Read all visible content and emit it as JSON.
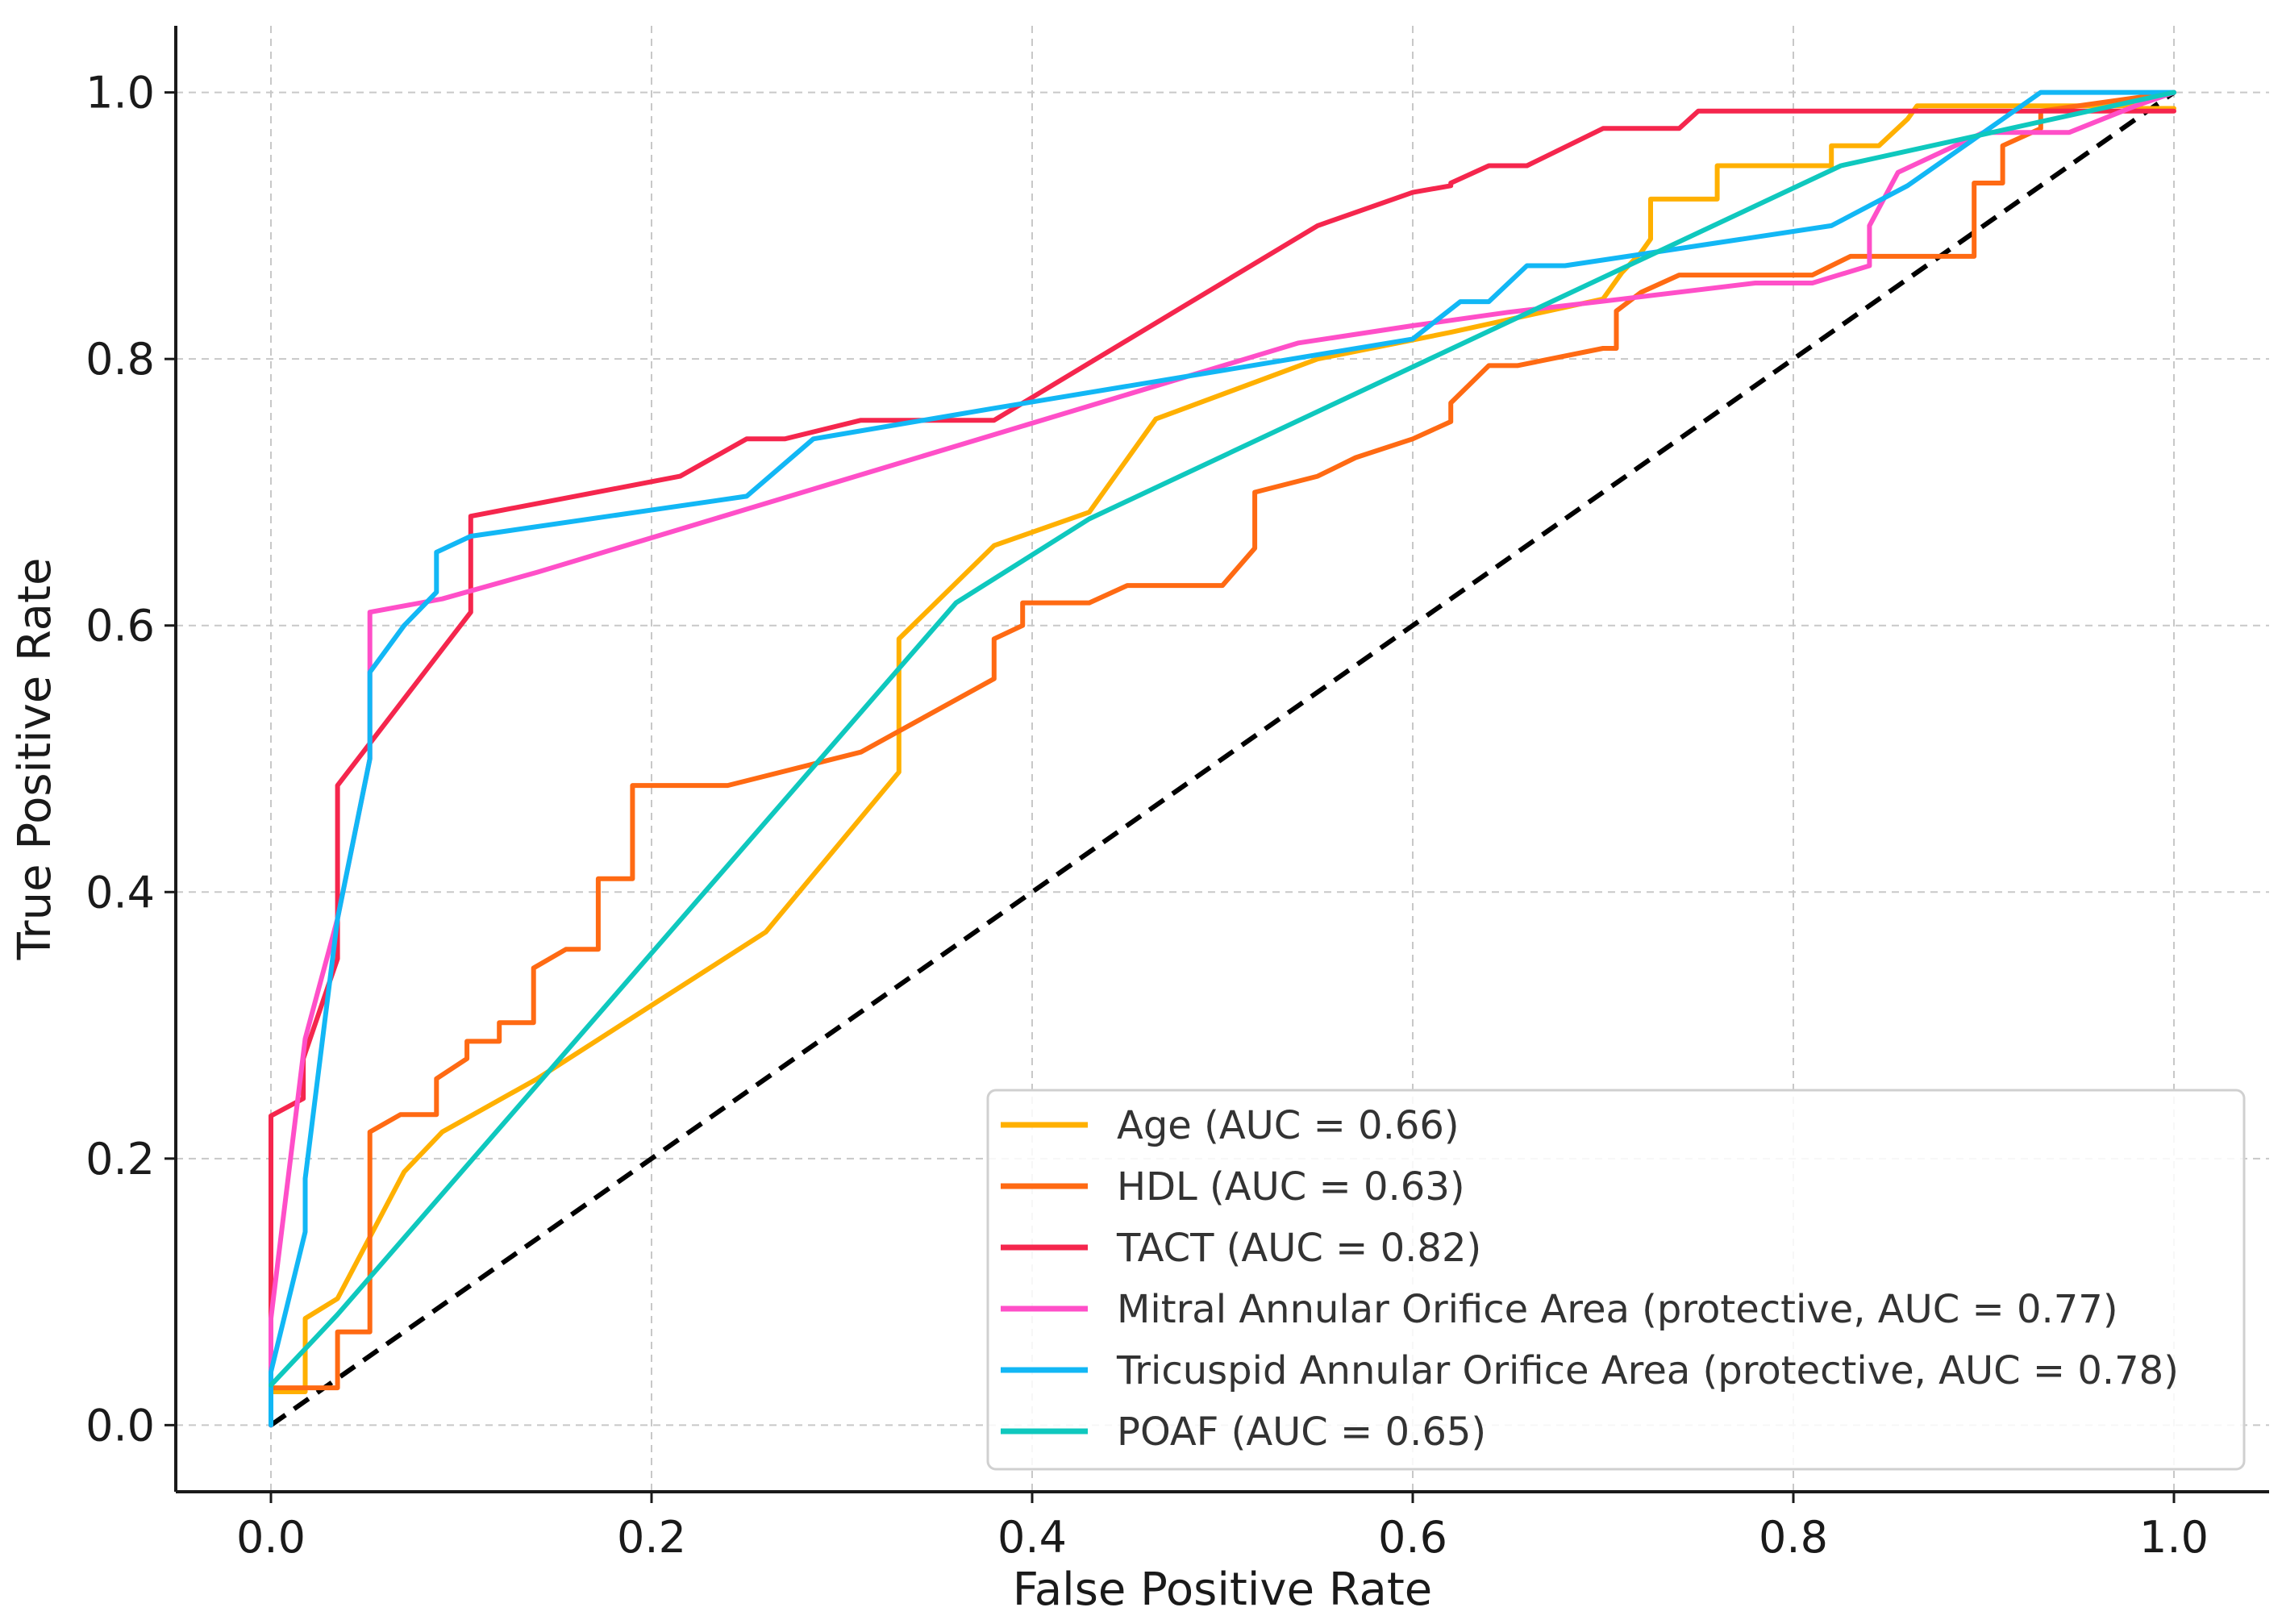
{
  "chart_data": {
    "type": "line",
    "title": "",
    "xlabel": "False Positive Rate",
    "ylabel": "True Positive Rate",
    "xlim": [
      -0.05,
      1.05
    ],
    "ylim": [
      -0.05,
      1.05
    ],
    "xticks": [
      "0.0",
      "0.2",
      "0.4",
      "0.6",
      "0.8",
      "1.0"
    ],
    "yticks": [
      "0.0",
      "0.2",
      "0.4",
      "0.6",
      "0.8",
      "1.0"
    ],
    "grid": true,
    "legend_position": "bottom-right",
    "reference_line": {
      "x": [
        0,
        1
      ],
      "y": [
        0,
        1
      ],
      "color": "#000000",
      "style": "dashed"
    },
    "series": [
      {
        "name": "Age (AUC = 0.66)",
        "color": "#FFB000",
        "x": [
          0,
          0,
          0.018,
          0.018,
          0.035,
          0.07,
          0.09,
          0.14,
          0.2,
          0.26,
          0.33,
          0.33,
          0.38,
          0.43,
          0.465,
          0.55,
          0.62,
          0.7,
          0.71,
          0.72,
          0.725,
          0.725,
          0.76,
          0.76,
          0.82,
          0.82,
          0.845,
          0.86,
          0.865,
          0.98,
          0.98,
          1
        ],
        "y": [
          0,
          0.025,
          0.025,
          0.08,
          0.095,
          0.19,
          0.22,
          0.26,
          0.315,
          0.37,
          0.49,
          0.59,
          0.66,
          0.685,
          0.755,
          0.8,
          0.82,
          0.845,
          0.865,
          0.88,
          0.89,
          0.92,
          0.92,
          0.945,
          0.945,
          0.96,
          0.96,
          0.98,
          0.99,
          0.99,
          0.988,
          0.988
        ]
      },
      {
        "name": "HDL (AUC = 0.63)",
        "color": "#FF6A13",
        "x": [
          0,
          0,
          0.035,
          0.035,
          0.052,
          0.052,
          0.068,
          0.087,
          0.087,
          0.103,
          0.103,
          0.12,
          0.12,
          0.138,
          0.138,
          0.155,
          0.172,
          0.172,
          0.19,
          0.19,
          0.24,
          0.31,
          0.38,
          0.38,
          0.395,
          0.395,
          0.43,
          0.45,
          0.5,
          0.517,
          0.517,
          0.55,
          0.57,
          0.6,
          0.62,
          0.62,
          0.64,
          0.655,
          0.7,
          0.707,
          0.707,
          0.72,
          0.74,
          0.81,
          0.83,
          0.895,
          0.895,
          0.91,
          0.91,
          0.93,
          0.93,
          1
        ],
        "y": [
          0,
          0.028,
          0.028,
          0.07,
          0.07,
          0.22,
          0.233,
          0.233,
          0.26,
          0.275,
          0.288,
          0.288,
          0.302,
          0.302,
          0.343,
          0.357,
          0.357,
          0.41,
          0.41,
          0.48,
          0.48,
          0.505,
          0.56,
          0.59,
          0.6,
          0.617,
          0.617,
          0.63,
          0.63,
          0.658,
          0.7,
          0.712,
          0.726,
          0.74,
          0.753,
          0.767,
          0.795,
          0.795,
          0.808,
          0.808,
          0.836,
          0.85,
          0.863,
          0.863,
          0.877,
          0.877,
          0.932,
          0.932,
          0.96,
          0.973,
          0.986,
          1
        ]
      },
      {
        "name": "TACT (AUC = 0.82)",
        "color": "#F5264D",
        "x": [
          0,
          0,
          0.017,
          0.017,
          0.035,
          0.035,
          0.07,
          0.105,
          0.105,
          0.215,
          0.25,
          0.27,
          0.31,
          0.37,
          0.38,
          0.55,
          0.6,
          0.62,
          0.62,
          0.64,
          0.66,
          0.7,
          0.74,
          0.75,
          0.76,
          1
        ],
        "y": [
          0,
          0.232,
          0.245,
          0.275,
          0.35,
          0.48,
          0.545,
          0.61,
          0.682,
          0.712,
          0.74,
          0.74,
          0.754,
          0.754,
          0.754,
          0.9,
          0.925,
          0.93,
          0.932,
          0.945,
          0.945,
          0.973,
          0.973,
          0.986,
          0.986,
          0.986
        ]
      },
      {
        "name": "Mitral Annular Orifice Area (protective, AUC = 0.77)",
        "color": "#FF4FC8",
        "x": [
          0,
          0,
          0.018,
          0.035,
          0.052,
          0.052,
          0.09,
          0.14,
          0.54,
          0.6,
          0.65,
          0.71,
          0.78,
          0.81,
          0.84,
          0.84,
          0.855,
          0.9,
          0.945,
          0.98,
          1
        ],
        "y": [
          0,
          0.08,
          0.29,
          0.38,
          0.5,
          0.61,
          0.62,
          0.64,
          0.812,
          0.825,
          0.835,
          0.845,
          0.857,
          0.857,
          0.87,
          0.9,
          0.94,
          0.97,
          0.97,
          0.99,
          1
        ]
      },
      {
        "name": "Tricuspid Annular Orifice Area (protective, AUC = 0.78)",
        "color": "#12B7F5",
        "x": [
          0,
          0,
          0.018,
          0.018,
          0.035,
          0.052,
          0.052,
          0.07,
          0.087,
          0.087,
          0.105,
          0.25,
          0.285,
          0.38,
          0.6,
          0.625,
          0.64,
          0.66,
          0.68,
          0.82,
          0.86,
          0.93,
          1
        ],
        "y": [
          0,
          0.04,
          0.145,
          0.185,
          0.38,
          0.5,
          0.565,
          0.6,
          0.625,
          0.655,
          0.667,
          0.697,
          0.74,
          0.763,
          0.815,
          0.843,
          0.843,
          0.87,
          0.87,
          0.9,
          0.93,
          1,
          1
        ]
      },
      {
        "name": "POAF (AUC = 0.65)",
        "color": "#0FC8BE",
        "x": [
          0,
          0.035,
          0.36,
          0.43,
          0.825,
          1
        ],
        "y": [
          0.03,
          0.083,
          0.617,
          0.68,
          0.945,
          1
        ]
      }
    ]
  }
}
